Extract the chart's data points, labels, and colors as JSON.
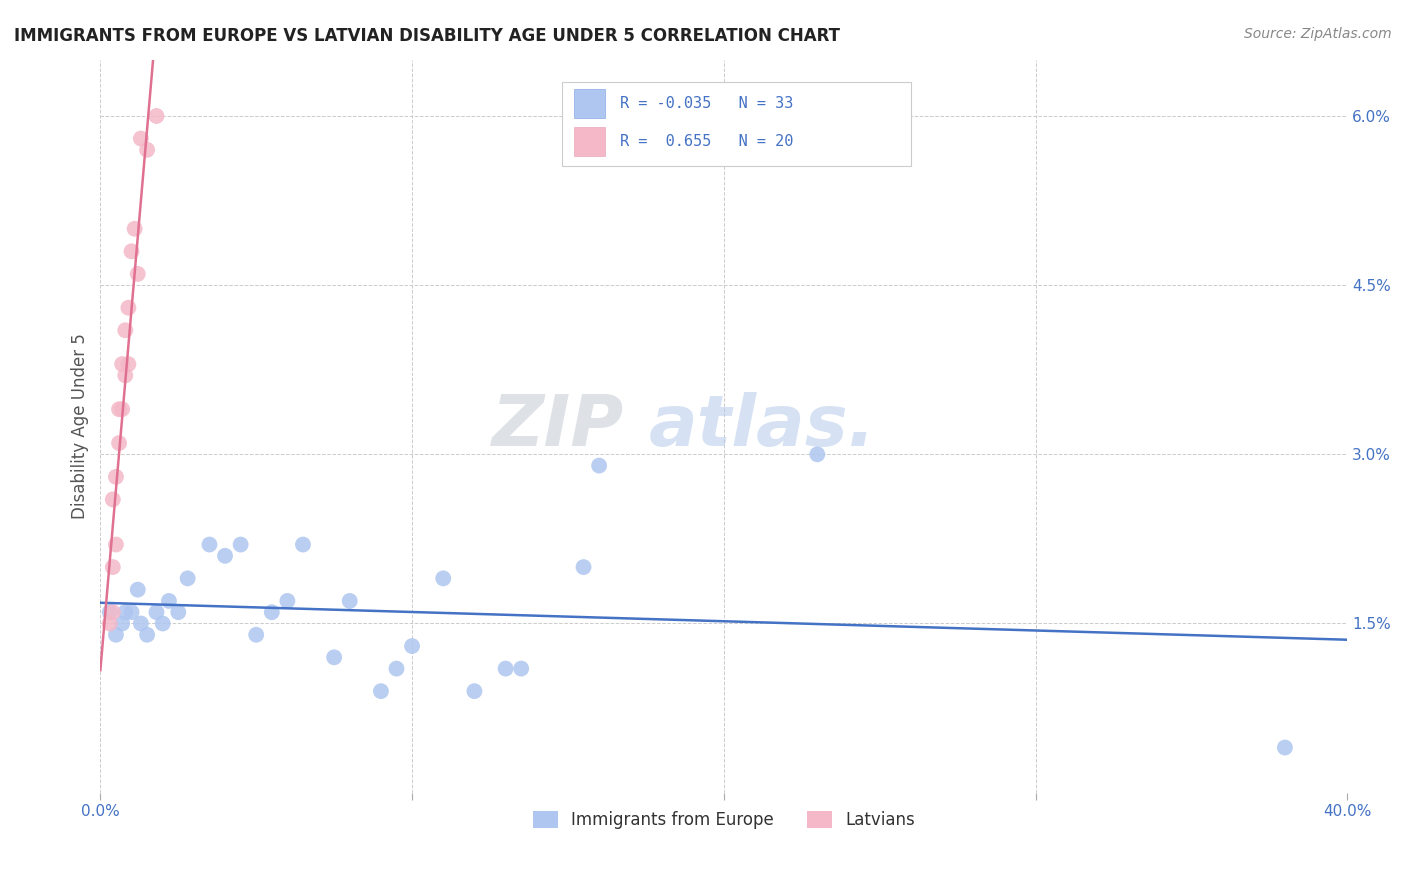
{
  "title": "IMMIGRANTS FROM EUROPE VS LATVIAN DISABILITY AGE UNDER 5 CORRELATION CHART",
  "source": "Source: ZipAtlas.com",
  "ylabel": "Disability Age Under 5",
  "xlim": [
    0.0,
    0.4
  ],
  "ylim": [
    0.0,
    0.065
  ],
  "xticks": [
    0.0,
    0.1,
    0.2,
    0.3,
    0.4
  ],
  "xticklabels_shown": [
    "0.0%",
    "",
    "",
    "",
    "40.0%"
  ],
  "yticks": [
    0.0,
    0.015,
    0.03,
    0.045,
    0.06
  ],
  "yticklabels": [
    "",
    "1.5%",
    "3.0%",
    "4.5%",
    "6.0%"
  ],
  "legend_labels": [
    "Immigrants from Europe",
    "Latvians"
  ],
  "blue_scatter_x": [
    0.003,
    0.005,
    0.007,
    0.008,
    0.01,
    0.012,
    0.013,
    0.015,
    0.018,
    0.02,
    0.022,
    0.025,
    0.028,
    0.035,
    0.04,
    0.045,
    0.05,
    0.055,
    0.06,
    0.065,
    0.075,
    0.08,
    0.09,
    0.095,
    0.1,
    0.11,
    0.12,
    0.13,
    0.135,
    0.155,
    0.16,
    0.23,
    0.38
  ],
  "blue_scatter_y": [
    0.016,
    0.014,
    0.015,
    0.016,
    0.016,
    0.018,
    0.015,
    0.014,
    0.016,
    0.015,
    0.017,
    0.016,
    0.019,
    0.022,
    0.021,
    0.022,
    0.014,
    0.016,
    0.017,
    0.022,
    0.012,
    0.017,
    0.009,
    0.011,
    0.013,
    0.019,
    0.009,
    0.011,
    0.011,
    0.02,
    0.029,
    0.03,
    0.004
  ],
  "pink_scatter_x": [
    0.003,
    0.004,
    0.004,
    0.004,
    0.005,
    0.005,
    0.006,
    0.006,
    0.007,
    0.007,
    0.008,
    0.008,
    0.009,
    0.009,
    0.01,
    0.011,
    0.012,
    0.013,
    0.015,
    0.018
  ],
  "pink_scatter_y": [
    0.015,
    0.016,
    0.02,
    0.026,
    0.022,
    0.028,
    0.031,
    0.034,
    0.034,
    0.038,
    0.037,
    0.041,
    0.043,
    0.038,
    0.048,
    0.05,
    0.046,
    0.058,
    0.057,
    0.06
  ],
  "blue_line_color": "#4472c4",
  "pink_line_color": "#e07090",
  "blue_dot_color": "#aec6f0",
  "pink_dot_color": "#f4b8c8",
  "watermark_zip": "ZIP",
  "watermark_atlas": "atlas.",
  "background_color": "#ffffff",
  "grid_color": "#cccccc",
  "title_color": "#222222",
  "source_color": "#888888",
  "axis_label_color": "#555555",
  "tick_color": "#4472c4",
  "legend_r1": "R = -0.035",
  "legend_n1": "N = 33",
  "legend_r2": "R =  0.655",
  "legend_n2": "N = 20"
}
